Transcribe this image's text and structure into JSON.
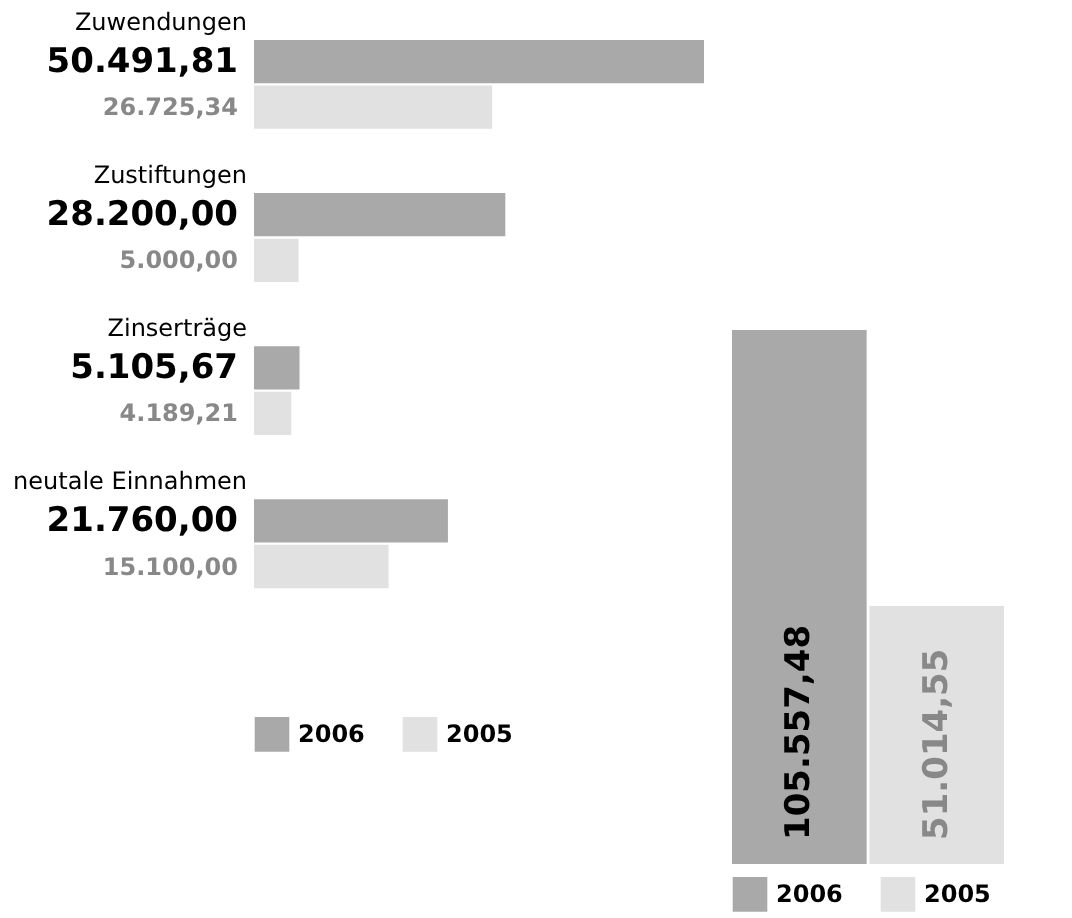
{
  "chart_data": [
    {
      "type": "bar",
      "orientation": "horizontal",
      "categories": [
        "Zuwendungen",
        "Zustiftungen",
        "Zinserträge",
        "neutale Einnahmen"
      ],
      "legend": "bottom left",
      "series": [
        {
          "name": "2006",
          "color": "#a9a9a9",
          "values": [
            50491.81,
            28200,
            5105.67,
            21760
          ],
          "value_labels": [
            "50.491,81",
            "28.200,00",
            "5.105,67",
            "21.760,00"
          ]
        },
        {
          "name": "2005",
          "color": "#e1e1e1",
          "values": [
            26725.34,
            5000,
            4189.21,
            15100
          ],
          "value_labels": [
            "26.725,34",
            "5.000,00",
            "4.189,21",
            "15.100,00"
          ]
        }
      ]
    },
    {
      "type": "bar",
      "categories": [
        null
      ],
      "legend": "bottom",
      "series": [
        {
          "name": "2006",
          "color": "#a9a9a9",
          "values": [
            105557.48
          ],
          "value_labels": [
            "105.557,48"
          ]
        },
        {
          "name": "2005",
          "color": "#e1e1e1",
          "values": [
            51014.55
          ],
          "value_labels": [
            "51.014,55"
          ]
        }
      ]
    }
  ]
}
